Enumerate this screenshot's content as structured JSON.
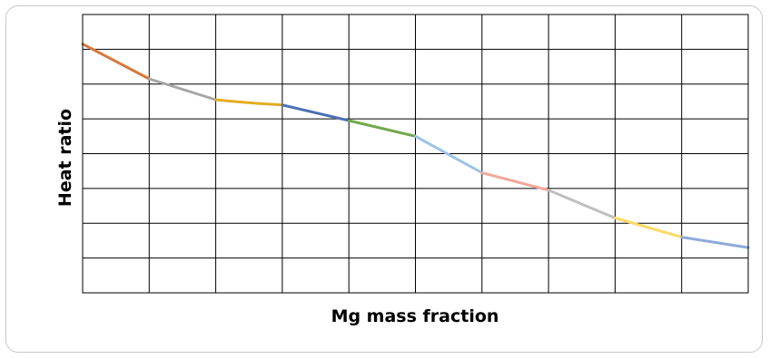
{
  "chart_data": {
    "type": "line",
    "title": "",
    "xlabel": "Mg mass fraction",
    "ylabel": "Heat ratio",
    "grid": true,
    "legend": "none",
    "xlim": [
      0,
      10
    ],
    "ylim": [
      0,
      8
    ],
    "x_ticks_shown": false,
    "y_ticks_shown": false,
    "series": [
      {
        "color": "#D9773A",
        "points": [
          [
            0,
            7.15
          ],
          [
            1,
            6.15
          ]
        ]
      },
      {
        "color": "#A6A6A6",
        "points": [
          [
            1,
            6.15
          ],
          [
            2,
            5.55
          ]
        ]
      },
      {
        "color": "#E3AE1E",
        "points": [
          [
            2,
            5.55
          ],
          [
            2.5,
            5.45
          ],
          [
            3,
            5.4
          ]
        ]
      },
      {
        "color": "#4A6FB5",
        "points": [
          [
            3,
            5.4
          ],
          [
            4,
            4.95
          ]
        ]
      },
      {
        "color": "#70A84A",
        "points": [
          [
            4,
            4.95
          ],
          [
            5,
            4.5
          ]
        ]
      },
      {
        "color": "#9DC3E6",
        "points": [
          [
            5,
            4.5
          ],
          [
            6,
            3.45
          ]
        ]
      },
      {
        "color": "#F2A79A",
        "points": [
          [
            6,
            3.45
          ],
          [
            7,
            2.95
          ]
        ]
      },
      {
        "color": "#BFBFBF",
        "points": [
          [
            7,
            2.95
          ],
          [
            8,
            2.15
          ]
        ]
      },
      {
        "color": "#FFD966",
        "points": [
          [
            8,
            2.15
          ],
          [
            9,
            1.6
          ]
        ]
      },
      {
        "color": "#8EA9DB",
        "points": [
          [
            9,
            1.6
          ],
          [
            10,
            1.3
          ]
        ]
      }
    ]
  }
}
